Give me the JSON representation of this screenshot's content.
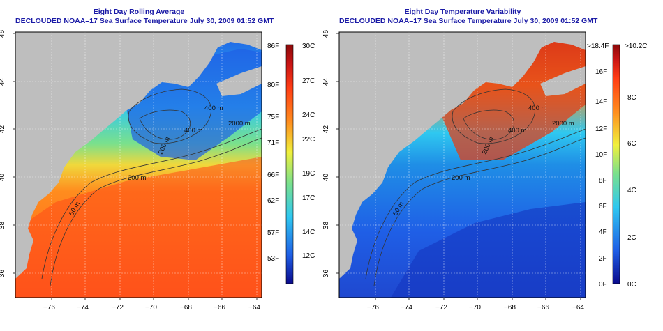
{
  "left_panel": {
    "title": "Eight Day Rolling Average",
    "subtitle": "DECLOUDED NOAA–17 Sea Surface Temperature July 30, 2009 01:52 GMT",
    "x_ticks": [
      "−76",
      "−74",
      "−72",
      "−70",
      "−68",
      "−66",
      "−64"
    ],
    "y_ticks": [
      "46",
      "44",
      "42",
      "40",
      "38",
      "36"
    ],
    "contour_labels": [
      "400 m",
      "400 m",
      "2000 m",
      "200 m",
      "200 m",
      "50 m"
    ],
    "colorbar": {
      "f_labels": [
        "86F",
        "80F",
        "75F",
        "71F",
        "66F",
        "62F",
        "57F",
        "53F"
      ],
      "c_labels": [
        "30C",
        "27C",
        "24C",
        "22C",
        "19C",
        "17C",
        "14C",
        "12C"
      ]
    }
  },
  "right_panel": {
    "title": "Eight Day Temperature Variability",
    "subtitle": "DECLOUDED NOAA–17 Sea Surface Temperature July 30, 2009 01:52 GMT",
    "x_ticks": [
      "−76",
      "−74",
      "−72",
      "−70",
      "−68",
      "−66",
      "−64"
    ],
    "y_ticks": [
      "46",
      "44",
      "42",
      "40",
      "38",
      "36"
    ],
    "contour_labels": [
      "400 m",
      "400 m",
      "2000 m",
      "200 m",
      "200 m",
      "50 m"
    ],
    "colorbar": {
      "f_labels": [
        ">18.4F",
        "16F",
        "14F",
        "12F",
        "10F",
        "8F",
        "6F",
        "4F",
        "2F",
        "0F"
      ],
      "c_labels": [
        ">10.2C",
        "8C",
        "6C",
        "4C",
        "2C",
        "0C"
      ]
    }
  },
  "colors": {
    "land": "#bebebe",
    "title": "#1a1aa6",
    "sst_scale": [
      "#0a0a8c",
      "#1f5fe6",
      "#2fc8f0",
      "#7ae08c",
      "#f0f03c",
      "#ff8c1e",
      "#ff3c14",
      "#c81414",
      "#8c0a0a"
    ],
    "var_scale": [
      "#0a0a8c",
      "#1f5fe6",
      "#2fc8f0",
      "#7ae08c",
      "#f0f03c",
      "#ff8c1e",
      "#ff3c14",
      "#c81414",
      "#8c0a0a"
    ]
  }
}
